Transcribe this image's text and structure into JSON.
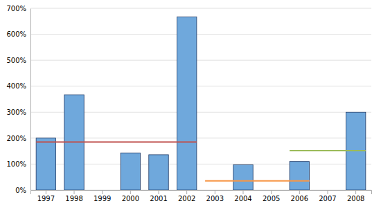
{
  "chart_data": {
    "type": "bar",
    "categories": [
      "1997",
      "1998",
      "1999",
      "2000",
      "2001",
      "2002",
      "2003",
      "2004",
      "2005",
      "2006",
      "2007",
      "2008"
    ],
    "series": [
      {
        "type": "bar",
        "color": "#6fa8dc",
        "values": [
          200,
          367,
          0,
          143,
          136,
          667,
          0,
          97,
          0,
          110,
          0,
          300
        ]
      },
      {
        "type": "line",
        "color": "#c0504d",
        "values": [
          185,
          185,
          185,
          185,
          185,
          185,
          null,
          null,
          null,
          null,
          null,
          null
        ]
      },
      {
        "type": "line",
        "color": "#f79646",
        "values": [
          null,
          null,
          null,
          null,
          null,
          null,
          35,
          35,
          35,
          35,
          null,
          null
        ]
      },
      {
        "type": "line",
        "color": "#9bbb59",
        "values": [
          null,
          null,
          null,
          null,
          null,
          null,
          null,
          null,
          null,
          152,
          152,
          152
        ]
      }
    ],
    "ylim": [
      0,
      700
    ],
    "yticks": [
      {
        "value": 0,
        "label": "0%"
      },
      {
        "value": 100,
        "label": "100%"
      },
      {
        "value": 200,
        "label": "200%"
      },
      {
        "value": 300,
        "label": "300%"
      },
      {
        "value": 400,
        "label": "400%"
      },
      {
        "value": 500,
        "label": "500%"
      },
      {
        "value": 600,
        "label": "600%"
      },
      {
        "value": 700,
        "label": "700%"
      }
    ],
    "grid": true
  }
}
